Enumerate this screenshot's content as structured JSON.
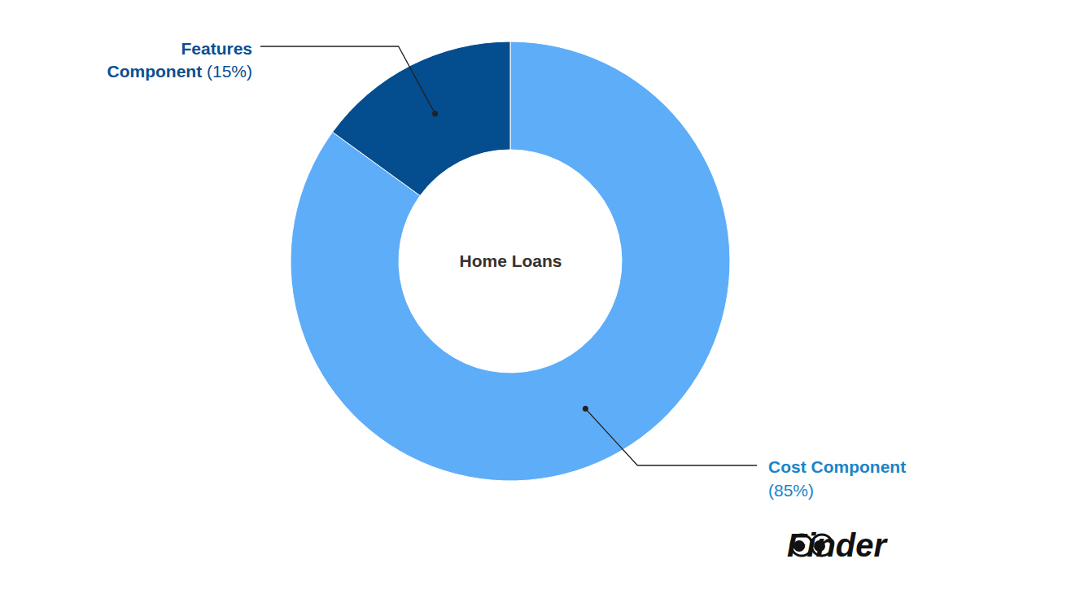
{
  "chart_data": {
    "type": "donut",
    "title": "Home Loans",
    "categories": [
      "Cost Component",
      "Features Component"
    ],
    "values": [
      85,
      15
    ],
    "value_labels": [
      "(85%)",
      "(15%)"
    ],
    "colors": [
      "#5eadf8",
      "#044d8e"
    ],
    "data_labels": true,
    "annotations": [
      "Finder"
    ]
  }
}
